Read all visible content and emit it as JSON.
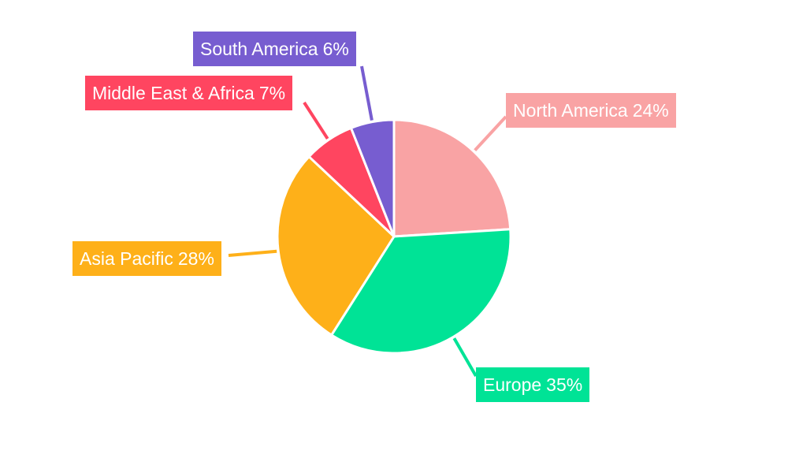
{
  "chart_data": {
    "type": "pie",
    "title": "",
    "start_angle": "top",
    "direction": "clockwise",
    "slices": [
      {
        "name": "North America",
        "value": 24,
        "label": "24%",
        "color": "#F9A3A4"
      },
      {
        "name": "Europe",
        "value": 35,
        "label": "35%",
        "color": "#00E396"
      },
      {
        "name": "Asia Pacific",
        "value": 28,
        "label": "28%",
        "color": "#FEB019"
      },
      {
        "name": "Middle East & Africa",
        "value": 7,
        "label": "7%",
        "color": "#FF4560"
      },
      {
        "name": "South America",
        "value": 6,
        "label": "6%",
        "color": "#775DD0"
      }
    ],
    "legend": "none",
    "data_labels": "outside-with-leader-lines"
  }
}
